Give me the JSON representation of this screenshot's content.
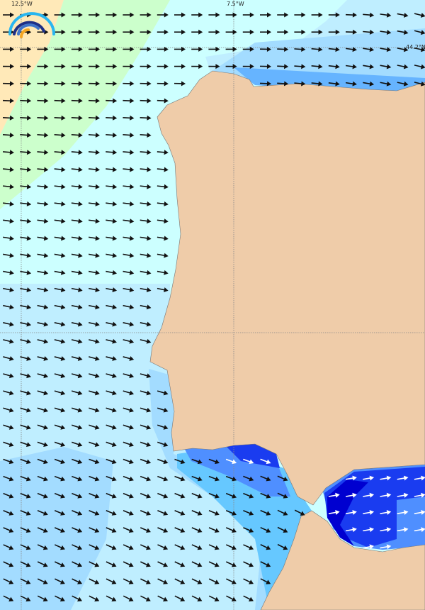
{
  "map": {
    "graticule_labels": {
      "lon_west": "12.5°W",
      "lon_east": "7.5°W",
      "lat": "44.2°N"
    },
    "colors": {
      "land": "#efcca9",
      "sea_yellow": "#ffe9b8",
      "sea_green": "#ccffcc",
      "sea_cyan": "#ccffff",
      "sea_light": "#bfeeff",
      "sea_mid": "#a3dcff",
      "sea_blue": "#66c8ff",
      "sea_strong": "#4f8fff",
      "sea_dark": "#1a3cf0",
      "sea_darkest": "#0000d0",
      "arrow": "#111111",
      "arrow_on_dark": "#ffffff"
    },
    "icons": [
      "logo-rainbow-arcs-icon",
      "direction-arrow-icon"
    ]
  }
}
